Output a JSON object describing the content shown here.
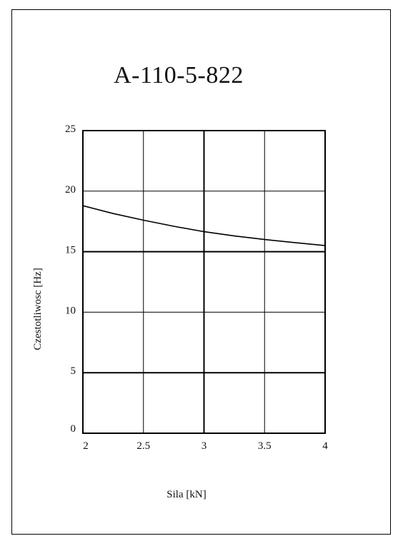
{
  "chart_data": {
    "type": "line",
    "title": "A-110-5-822",
    "xlabel": "Sila [kN]",
    "ylabel": "Czestotliwosc [Hz]",
    "xlim": [
      2,
      4
    ],
    "ylim": [
      0,
      25
    ],
    "x_ticks": [
      "2",
      "2.5",
      "3",
      "3.5",
      "4"
    ],
    "y_ticks": [
      "0",
      "5",
      "10",
      "15",
      "20",
      "25"
    ],
    "grid": true,
    "series": [
      {
        "x": [
          2.0,
          2.25,
          2.5,
          2.75,
          3.0,
          3.25,
          3.5,
          3.75,
          4.0
        ],
        "y": [
          18.8,
          18.15,
          17.6,
          17.1,
          16.65,
          16.3,
          16.0,
          15.75,
          15.5
        ]
      }
    ]
  },
  "colors": {
    "line": "#000000",
    "grid": "#000000",
    "background": "#ffffff"
  }
}
